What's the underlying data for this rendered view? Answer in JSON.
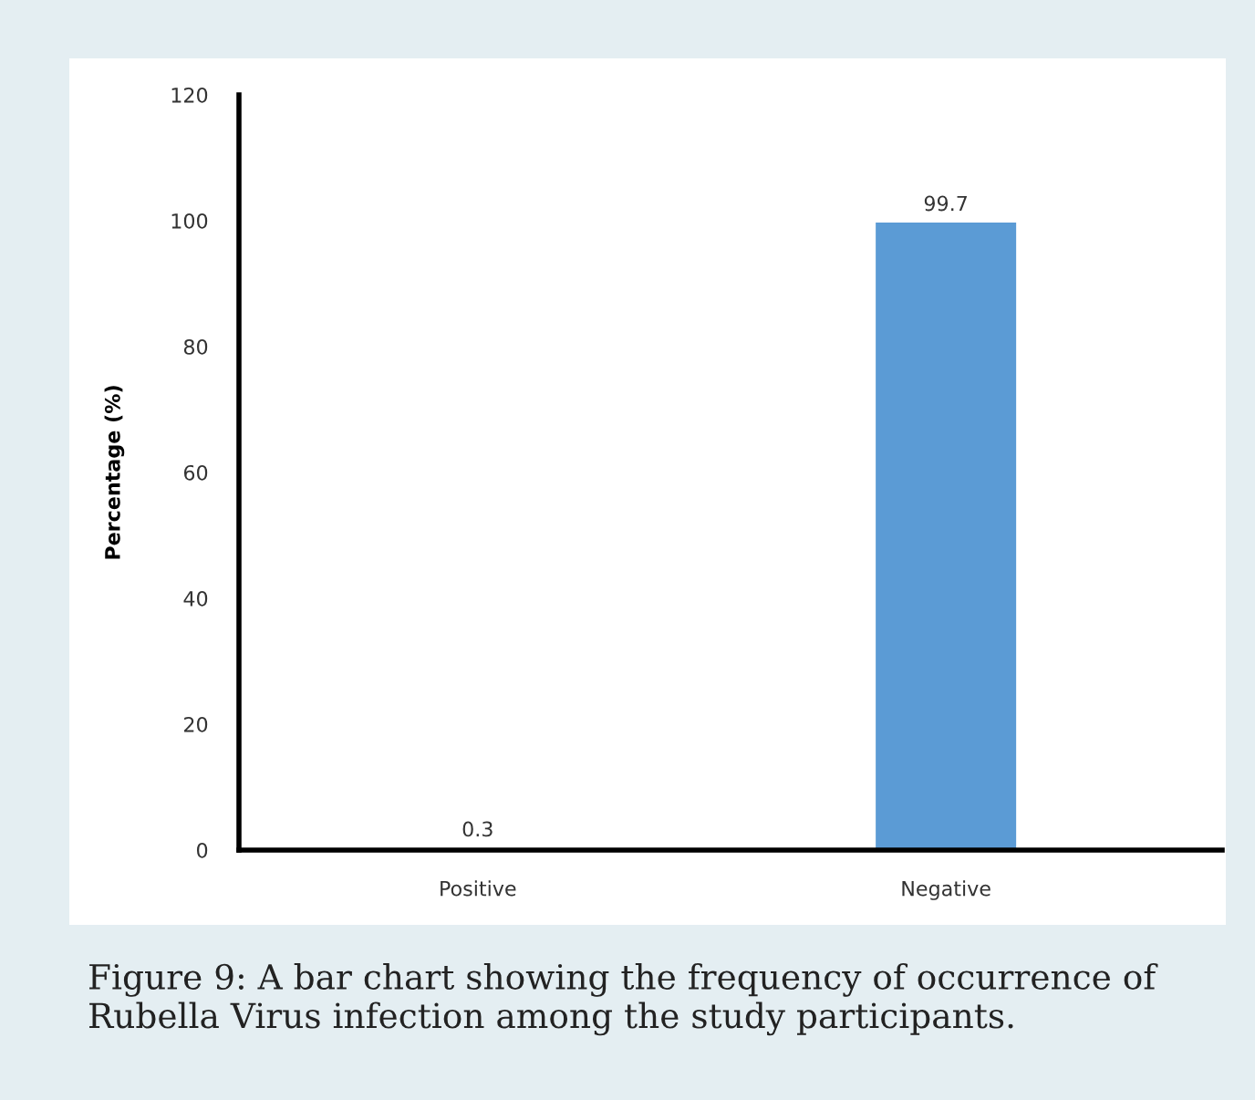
{
  "chart_data": {
    "type": "bar",
    "ylabel": "Percentage (%)",
    "categories": [
      "Positive",
      "Negative"
    ],
    "values": [
      0.3,
      99.7
    ],
    "color": "#5b9bd5",
    "ylim": [
      0,
      120
    ],
    "yticks": [
      0,
      20,
      40,
      60,
      80,
      100,
      120
    ],
    "grid": false,
    "data_labels": true,
    "annotations": [
      "Figure 9: A bar chart showing the frequency of occurrence of Rubella Virus infection among the study participants."
    ]
  }
}
